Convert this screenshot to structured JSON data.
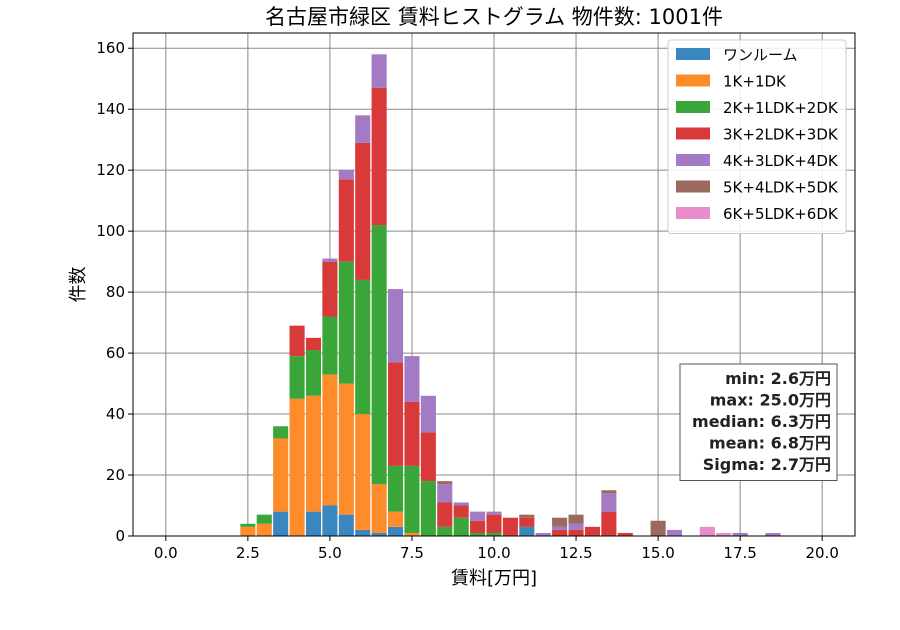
{
  "chart_data": {
    "type": "bar",
    "stacked": true,
    "title": "名古屋市緑区 賃料ヒストグラム 物件数: 1001件",
    "xlabel": "賃料[万円]",
    "ylabel": "件数",
    "xlim": [
      -1.0,
      21.0
    ],
    "ylim": [
      0,
      165
    ],
    "xticks": [
      0.0,
      2.5,
      5.0,
      7.5,
      10.0,
      12.5,
      15.0,
      17.5,
      20.0
    ],
    "xtick_labels": [
      "0.0",
      "2.5",
      "5.0",
      "7.5",
      "10.0",
      "12.5",
      "15.0",
      "17.5",
      "20.0"
    ],
    "yticks": [
      0,
      20,
      40,
      60,
      80,
      100,
      120,
      140,
      160
    ],
    "ytick_labels": [
      "0",
      "20",
      "40",
      "60",
      "80",
      "100",
      "120",
      "140",
      "160"
    ],
    "bin_width": 0.5,
    "x": [
      2.5,
      3.0,
      3.5,
      4.0,
      4.5,
      5.0,
      5.5,
      6.0,
      6.5,
      7.0,
      7.5,
      8.0,
      8.5,
      9.0,
      9.5,
      10.0,
      10.5,
      11.0,
      11.5,
      12.0,
      12.5,
      13.0,
      13.5,
      14.0,
      15.0,
      15.5,
      16.5,
      17.0,
      17.5,
      18.5
    ],
    "series": [
      {
        "name": "ワンルーム",
        "color": "#3a87c0",
        "values": [
          0,
          0,
          8,
          0,
          8,
          10,
          7,
          2,
          1,
          3,
          0,
          0,
          0,
          0,
          0,
          0,
          0,
          3,
          0,
          0,
          0,
          0,
          0,
          0,
          0,
          0,
          0,
          0,
          0,
          0
        ]
      },
      {
        "name": "1K+1DK",
        "color": "#ff8c2a",
        "values": [
          3,
          4,
          24,
          45,
          38,
          43,
          43,
          38,
          16,
          5,
          1,
          0,
          0,
          0,
          0,
          0,
          0,
          0,
          0,
          0,
          0,
          0,
          0,
          0,
          0,
          0,
          0,
          0,
          0,
          0
        ]
      },
      {
        "name": "2K+1LDK+2DK",
        "color": "#3aa63a",
        "values": [
          1,
          3,
          4,
          14,
          15,
          19,
          40,
          44,
          85,
          15,
          22,
          18,
          3,
          6,
          1,
          1,
          0,
          0,
          0,
          0,
          0,
          0,
          0,
          0,
          0,
          0,
          0,
          0,
          0,
          0
        ]
      },
      {
        "name": "3K+2LDK+3DK",
        "color": "#d83a3a",
        "values": [
          0,
          0,
          0,
          10,
          4,
          18,
          27,
          45,
          45,
          34,
          21,
          16,
          8,
          4,
          4,
          6,
          6,
          3,
          0,
          2,
          2,
          3,
          8,
          1,
          0,
          0,
          0,
          0,
          0,
          0
        ]
      },
      {
        "name": "4K+3LDK+4DK",
        "color": "#a37ac4",
        "values": [
          0,
          0,
          0,
          0,
          0,
          1,
          3,
          9,
          11,
          24,
          15,
          12,
          6,
          1,
          3,
          1,
          0,
          0,
          1,
          1,
          2,
          0,
          6,
          0,
          0,
          2,
          0,
          0,
          1,
          1
        ]
      },
      {
        "name": "5K+4LDK+5DK",
        "color": "#9a6a5e",
        "values": [
          0,
          0,
          0,
          0,
          0,
          0,
          0,
          0,
          0,
          0,
          0,
          0,
          1,
          0,
          0,
          0,
          0,
          1,
          0,
          3,
          3,
          0,
          1,
          0,
          5,
          0,
          0,
          0,
          0,
          0
        ]
      },
      {
        "name": "6K+5LDK+6DK",
        "color": "#e88ccc",
        "values": [
          0,
          0,
          0,
          0,
          0,
          0,
          0,
          0,
          0,
          0,
          0,
          0,
          0,
          0,
          0,
          0,
          0,
          0,
          0,
          0,
          0,
          0,
          0,
          0,
          0,
          0,
          3,
          1,
          0,
          0
        ]
      }
    ],
    "grid": true,
    "legend_position": "top-right",
    "stats_box": [
      "min: 2.6万円",
      "max: 25.0万円",
      "median: 6.3万円",
      "mean: 6.8万円",
      "Sigma: 2.7万円"
    ],
    "stats_position": "bottom-right"
  }
}
